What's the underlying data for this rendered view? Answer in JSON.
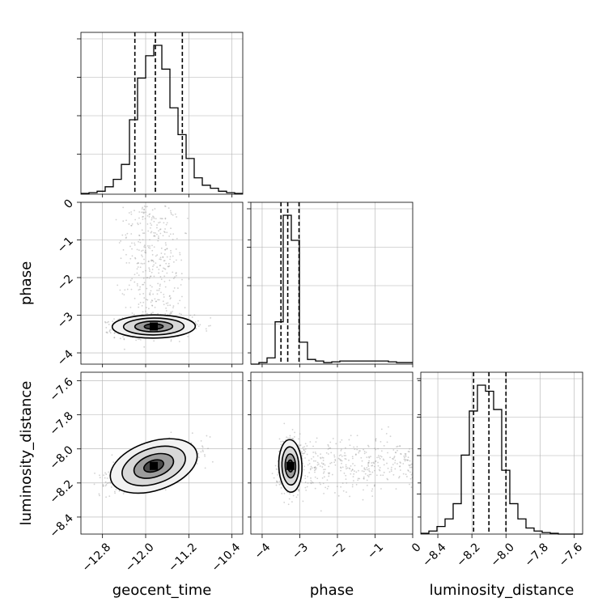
{
  "chart_data": {
    "type": "corner",
    "parameters": [
      "geocent_time",
      "phase",
      "luminosity_distance"
    ],
    "axis_labels": {
      "x": [
        "geocent_time",
        "phase",
        "luminosity_distance"
      ],
      "y": [
        "phase",
        "luminosity_distance"
      ]
    },
    "ranges": {
      "geocent_time": [
        -13.2,
        -10.2
      ],
      "phase": [
        -4.3,
        0
      ],
      "luminosity_distance": [
        -8.5,
        -7.55
      ]
    },
    "ticks": {
      "geocent_time": [
        "−12.8",
        "−12.0",
        "−11.2",
        "−10.4"
      ],
      "phase": [
        "−4",
        "−3",
        "−2",
        "−1",
        "0"
      ],
      "luminosity_distance": [
        "−8.4",
        "−8.2",
        "−8.0",
        "−7.8",
        "−7.6"
      ]
    },
    "tick_values": {
      "geocent_time": [
        -12.8,
        -12.0,
        -11.2,
        -10.4
      ],
      "phase": [
        -4,
        -3,
        -2,
        -1,
        0
      ],
      "luminosity_distance": [
        -8.4,
        -8.2,
        -8.0,
        -7.8,
        -7.6
      ]
    },
    "quantiles": {
      "geocent_time": [
        -12.2,
        -11.82,
        -11.32
      ],
      "phase": [
        -3.5,
        -3.32,
        -3.02
      ],
      "luminosity_distance": [
        -8.19,
        -8.1,
        -8.0
      ]
    },
    "histograms": {
      "geocent_time": {
        "edges": [
          -13.2,
          -13.05,
          -12.9,
          -12.75,
          -12.6,
          -12.45,
          -12.3,
          -12.15,
          -12.0,
          -11.85,
          -11.7,
          -11.55,
          -11.4,
          -11.25,
          -11.1,
          -10.95,
          -10.8,
          -10.65,
          -10.5,
          -10.35,
          -10.2
        ],
        "counts": [
          0.005,
          0.01,
          0.02,
          0.05,
          0.1,
          0.2,
          0.5,
          0.78,
          0.93,
          1.0,
          0.84,
          0.58,
          0.4,
          0.24,
          0.11,
          0.06,
          0.04,
          0.02,
          0.01,
          0.005
        ]
      },
      "phase": {
        "edges": [
          -4.3,
          -4.085,
          -3.87,
          -3.655,
          -3.44,
          -3.225,
          -3.01,
          -2.795,
          -2.58,
          -2.365,
          -2.15,
          -1.935,
          -1.72,
          -1.505,
          -1.29,
          -1.075,
          -0.86,
          -0.645,
          -0.43,
          -0.215,
          0
        ],
        "counts": [
          0.0,
          0.01,
          0.04,
          0.27,
          0.95,
          0.79,
          0.14,
          0.03,
          0.02,
          0.01,
          0.015,
          0.02,
          0.02,
          0.02,
          0.02,
          0.02,
          0.02,
          0.015,
          0.01,
          0.01
        ]
      },
      "luminosity_distance": {
        "edges": [
          -8.5,
          -8.4525,
          -8.405,
          -8.3575,
          -8.31,
          -8.2625,
          -8.215,
          -8.1675,
          -8.12,
          -8.0725,
          -8.025,
          -7.9775,
          -7.93,
          -7.8825,
          -7.835,
          -7.7875,
          -7.74,
          -7.6925,
          -7.645,
          -7.5975,
          -7.55
        ],
        "counts": [
          0.005,
          0.02,
          0.05,
          0.1,
          0.2,
          0.52,
          0.81,
          0.98,
          0.94,
          0.82,
          0.42,
          0.2,
          0.1,
          0.04,
          0.02,
          0.01,
          0.005,
          0.0,
          0.0,
          0.0
        ]
      }
    },
    "gaussians": {
      "phase_vs_geocent_time": {
        "center": [
          -11.85,
          -3.3
        ],
        "sigma": [
          0.35,
          0.14
        ],
        "corr": 0.1
      },
      "luminosity_distance_vs_geocent_time": {
        "center": [
          -11.85,
          -8.1
        ],
        "sigma": [
          0.38,
          0.065
        ],
        "corr": 0.62
      },
      "luminosity_distance_vs_phase": {
        "center": [
          -3.25,
          -8.1
        ],
        "sigma": [
          0.14,
          0.07
        ],
        "corr": 0.05
      }
    },
    "colors": {
      "line": "#000000",
      "grid": "#b0b0b0",
      "scatter": "#9a9a9a",
      "background": "#ffffff"
    },
    "grid": true
  }
}
